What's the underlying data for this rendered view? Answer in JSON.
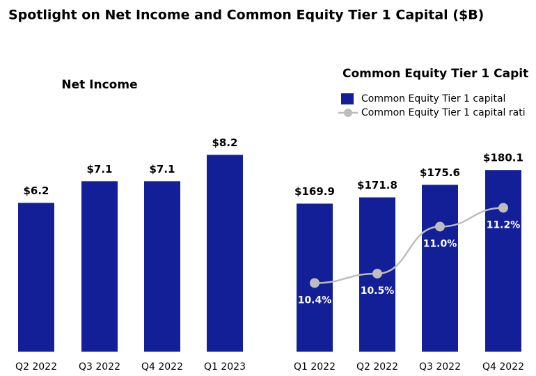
{
  "title": "Spotlight on Net Income and Common Equity Tier 1 Capital ($B)",
  "chart_data": [
    {
      "type": "bar",
      "title": "Net Income",
      "categories": [
        "Q2 2022",
        "Q3 2022",
        "Q4 2022",
        "Q1 2023"
      ],
      "values": [
        6.2,
        7.1,
        7.1,
        8.2
      ],
      "value_labels": [
        "$6.2",
        "$7.1",
        "$7.1",
        "$8.2"
      ],
      "color": "#131f97",
      "ylim": [
        0,
        10.3
      ]
    },
    {
      "type": "combo",
      "title": "Common Equity Tier 1 Capit",
      "categories": [
        "Q1 2022",
        "Q2 2022",
        "Q3 2022",
        "Q4 2022"
      ],
      "series": [
        {
          "name": "Common Equity Tier 1 capital",
          "type": "bar",
          "color": "#131f97",
          "values": [
            169.9,
            171.8,
            175.6,
            180.1
          ],
          "value_labels": [
            "$169.9",
            "$171.8",
            "$175.6",
            "$180.1"
          ]
        },
        {
          "name": "Common Equity Tier 1 capital rati",
          "type": "line",
          "axis": "y2",
          "color": "#bdbdbd",
          "values": [
            10.4,
            10.5,
            11.0,
            11.2
          ],
          "value_labels": [
            "10.4%",
            "10.5%",
            "11.0%",
            "11.2%"
          ]
        }
      ],
      "ylim": [
        125,
        200
      ],
      "y2lim": [
        9.67,
        12.3
      ]
    }
  ]
}
